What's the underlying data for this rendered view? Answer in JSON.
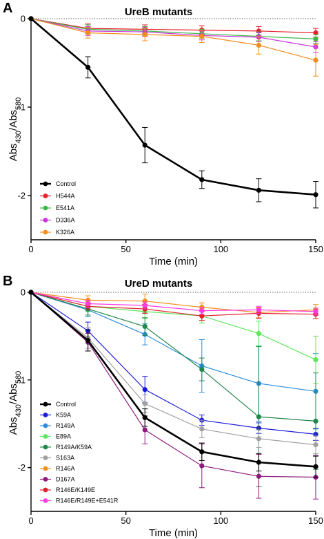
{
  "panels": [
    {
      "letter": "A",
      "chart_data": {
        "type": "line",
        "title": "UreB mutants",
        "xlabel": "Time (min)",
        "ylabel": "Abs430/Abs580",
        "ylabel_main1": "Abs",
        "ylabel_sub1": "430",
        "ylabel_main2": "/Abs",
        "ylabel_sub2": "580",
        "xlim": [
          0,
          150
        ],
        "ylim": [
          -2.5,
          0
        ],
        "x_ticks": [
          0,
          50,
          100,
          150
        ],
        "y_ticks": [
          0,
          -1,
          -2
        ],
        "x_tick_labels": [
          "0",
          "50",
          "100",
          "150"
        ],
        "y_tick_labels": [
          "0",
          "-1",
          "-2"
        ],
        "reference_line": 0,
        "legend_position": "bottom-left",
        "x": [
          0,
          30,
          60,
          90,
          120,
          150
        ],
        "series": [
          {
            "name": "Control",
            "color": "#000000",
            "values": [
              0,
              -0.55,
              -1.43,
              -1.82,
              -1.94,
              -1.99
            ],
            "errors": [
              0,
              0.12,
              0.2,
              0.1,
              0.13,
              0.15
            ]
          },
          {
            "name": "H544A",
            "color": "#e8202a",
            "values": [
              0,
              -0.11,
              -0.12,
              -0.13,
              -0.14,
              -0.16
            ],
            "errors": [
              0,
              0.05,
              0.05,
              0.05,
              0.05,
              0.05
            ]
          },
          {
            "name": "E541A",
            "color": "#3cb84a",
            "values": [
              0,
              -0.12,
              -0.14,
              -0.17,
              -0.2,
              -0.23
            ],
            "errors": [
              0,
              0.05,
              0.05,
              0.05,
              0.05,
              0.05
            ]
          },
          {
            "name": "D336A",
            "color": "#cc33e0",
            "values": [
              0,
              -0.14,
              -0.15,
              -0.19,
              -0.21,
              -0.32
            ],
            "errors": [
              0,
              0.05,
              0.05,
              0.05,
              0.05,
              0.06
            ]
          },
          {
            "name": "K326A",
            "color": "#f28e1c",
            "values": [
              0,
              -0.16,
              -0.18,
              -0.2,
              -0.3,
              -0.47
            ],
            "errors": [
              0,
              0.06,
              0.07,
              0.07,
              0.1,
              0.18
            ]
          }
        ]
      }
    },
    {
      "letter": "B",
      "chart_data": {
        "type": "line",
        "title": "UreD mutants",
        "xlabel": "Time (min)",
        "ylabel": "Abs430/Abs580",
        "ylabel_main1": "Abs",
        "ylabel_sub1": "430",
        "ylabel_main2": "/Abs",
        "ylabel_sub2": "580",
        "xlim": [
          0,
          150
        ],
        "ylim": [
          -2.5,
          0
        ],
        "x_ticks": [
          0,
          50,
          100,
          150
        ],
        "y_ticks": [
          0,
          -1,
          -2
        ],
        "x_tick_labels": [
          "0",
          "50",
          "100",
          "150"
        ],
        "y_tick_labels": [
          "0",
          "-1",
          "-2"
        ],
        "reference_line": 0,
        "legend_position": "bottom-left",
        "x": [
          0,
          30,
          60,
          90,
          120,
          150
        ],
        "series": [
          {
            "name": "Control",
            "color": "#000000",
            "values": [
              0,
              -0.55,
              -1.43,
              -1.82,
              -1.94,
              -1.99
            ],
            "errors": [
              0,
              0.12,
              0.1,
              0.1,
              0.1,
              0.12
            ]
          },
          {
            "name": "K59A",
            "color": "#1a1adb",
            "values": [
              0,
              -0.44,
              -1.11,
              -1.46,
              -1.55,
              -1.62
            ],
            "errors": [
              0,
              0.1,
              0.15,
              0.06,
              0.06,
              0.07
            ]
          },
          {
            "name": "R149A",
            "color": "#2a8cdb",
            "values": [
              0,
              -0.2,
              -0.48,
              -0.84,
              -1.04,
              -1.13
            ],
            "errors": [
              0,
              0.08,
              0.12,
              0.3,
              0.43,
              0.43
            ]
          },
          {
            "name": "E89A",
            "color": "#5ce65c",
            "values": [
              0,
              -0.16,
              -0.22,
              -0.27,
              -0.47,
              -0.77
            ],
            "errors": [
              0,
              0.06,
              0.08,
              0.08,
              0.14,
              0.27
            ]
          },
          {
            "name": "R149A/K59A",
            "color": "#21864a",
            "values": [
              0,
              -0.19,
              -0.39,
              -0.88,
              -1.42,
              -1.47
            ],
            "errors": [
              0,
              0.07,
              0.1,
              0.13,
              0.8,
              0.55
            ]
          },
          {
            "name": "S163A",
            "color": "#a0a0a0",
            "values": [
              0,
              -0.52,
              -1.27,
              -1.56,
              -1.67,
              -1.74
            ],
            "errors": [
              0,
              0.12,
              0.1,
              0.1,
              0.1,
              0.1
            ]
          },
          {
            "name": "R146A",
            "color": "#f28e1c",
            "values": [
              0,
              -0.09,
              -0.1,
              -0.17,
              -0.23,
              -0.2
            ],
            "errors": [
              0,
              0.05,
              0.08,
              0.05,
              0.06,
              0.06
            ]
          },
          {
            "name": "D167A",
            "color": "#8e1a7e",
            "values": [
              0,
              -0.57,
              -1.57,
              -1.98,
              -2.1,
              -2.11
            ],
            "errors": [
              0,
              0.1,
              0.16,
              0.25,
              0.25,
              0.25
            ]
          },
          {
            "name": "R146E/K149E",
            "color": "#e0202a",
            "values": [
              0,
              -0.16,
              -0.19,
              -0.27,
              -0.24,
              -0.25
            ],
            "errors": [
              0,
              0.04,
              0.05,
              0.05,
              0.06,
              0.05
            ]
          },
          {
            "name": "R146E/R149E+E541R",
            "color": "#ff3ae0",
            "values": [
              0,
              -0.13,
              -0.15,
              -0.21,
              -0.2,
              -0.22
            ],
            "errors": [
              0,
              0.04,
              0.04,
              0.04,
              0.04,
              0.04
            ]
          }
        ]
      }
    }
  ]
}
